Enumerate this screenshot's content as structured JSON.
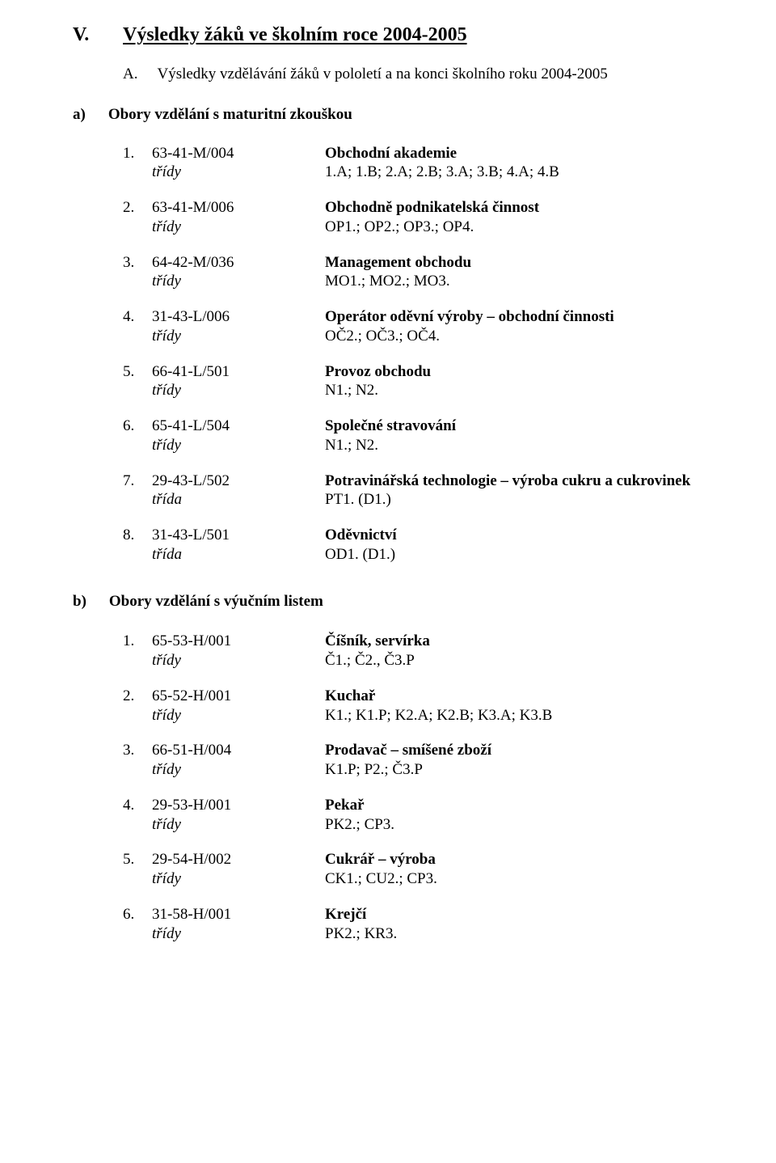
{
  "heading": {
    "roman": "V.",
    "title": "Výsledky žáků ve školním roce 2004-2005"
  },
  "intro": {
    "letter": "A.",
    "text": "Výsledky vzdělávání žáků v pololetí a na konci školního roku 2004-2005"
  },
  "section_a": {
    "letter": "a)",
    "text": "Obory vzdělání s maturitní zkouškou",
    "items": [
      {
        "num": "1.",
        "code": "63-41-M/004",
        "name": "Obchodní akademie",
        "tridy_label": "třídy",
        "tridy_val": "1.A; 1.B; 2.A; 2.B; 3.A; 3.B; 4.A; 4.B"
      },
      {
        "num": "2.",
        "code": "63-41-M/006",
        "name": "Obchodně podnikatelská činnost",
        "tridy_label": "třídy",
        "tridy_val": "OP1.; OP2.; OP3.; OP4."
      },
      {
        "num": "3.",
        "code": "64-42-M/036",
        "name": "Management obchodu",
        "tridy_label": "třídy",
        "tridy_val": "MO1.; MO2.; MO3."
      },
      {
        "num": "4.",
        "code": "31-43-L/006",
        "name": "Operátor oděvní výroby – obchodní činnosti",
        "tridy_label": "třídy",
        "tridy_val": "OČ2.; OČ3.; OČ4."
      },
      {
        "num": "5.",
        "code": "66-41-L/501",
        "name": "Provoz obchodu",
        "tridy_label": "třídy",
        "tridy_val": "N1.; N2."
      },
      {
        "num": "6.",
        "code": "65-41-L/504",
        "name": "Společné  stravování",
        "tridy_label": "třídy",
        "tridy_val": "N1.; N2."
      },
      {
        "num": "7.",
        "code": "29-43-L/502",
        "name": "Potravinářská technologie – výroba cukru a cukrovinek",
        "tridy_label": "třída",
        "tridy_val": "PT1. (D1.)"
      },
      {
        "num": "8.",
        "code": "31-43-L/501",
        "name": "Oděvnictví",
        "tridy_label": "třída",
        "tridy_val": "OD1. (D1.)"
      }
    ]
  },
  "section_b": {
    "letter": "b)",
    "text": "Obory vzdělání s výučním listem",
    "items": [
      {
        "num": "1.",
        "code": "65-53-H/001",
        "name": "Číšník, servírka",
        "tridy_label": "třídy",
        "tridy_val": "Č1.; Č2., Č3.P"
      },
      {
        "num": "2.",
        "code": "65-52-H/001",
        "name": "Kuchař",
        "tridy_label": "třídy",
        "tridy_val": "K1.; K1.P; K2.A; K2.B; K3.A; K3.B"
      },
      {
        "num": "3.",
        "code": "66-51-H/004",
        "name": "Prodavač – smíšené zboží",
        "tridy_label": "třídy",
        "tridy_val": "K1.P; P2.; Č3.P"
      },
      {
        "num": "4.",
        "code": "29-53-H/001",
        "name": "Pekař",
        "tridy_label": "třídy",
        "tridy_val": "PK2.; CP3."
      },
      {
        "num": "5.",
        "code": "29-54-H/002",
        "name": "Cukrář – výroba",
        "tridy_label": "třídy",
        "tridy_val": "CK1.; CU2.; CP3."
      },
      {
        "num": "6.",
        "code": "31-58-H/001",
        "name": "Krejčí",
        "tridy_label": "třídy",
        "tridy_val": "PK2.; KR3."
      }
    ]
  }
}
